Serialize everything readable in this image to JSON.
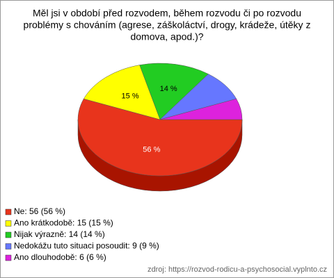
{
  "chart_data": {
    "type": "pie",
    "title": [
      "Měl jsi v období před rozvodem, během rozvodu či po rozvodu",
      "problémy s chováním (agrese, záškoláctví, drogy, krádeže, útěky z",
      "domova, apod.)?"
    ],
    "categories": [
      "Ne",
      "Ano krátkodobě",
      "Nijak výrazně",
      "Nedokážu tuto situaci posoudit",
      "Ano dlouhodobě"
    ],
    "values": [
      56,
      15,
      14,
      9,
      6
    ],
    "value_labels": [
      "56 %",
      "15 %",
      "14 %",
      null,
      null
    ],
    "legend_labels": [
      "Ne: 56 (56 %)",
      "Ano krátkodobě: 15 (15 %)",
      "Nijak výrazně: 14 (14 %)",
      "Nedokážu tuto situaci posoudit: 9 (9 %)",
      "Ano dlouhodobě: 6 (6 %)"
    ],
    "colors": [
      "#e8341c",
      "#ffff00",
      "#22cc22",
      "#6677ff",
      "#dd22dd"
    ],
    "side_colors": [
      "#a81400",
      "#b0b000",
      "#118811",
      "#3344bb",
      "#991199"
    ],
    "source": "zdroj: https://rozvod-rodicu-a-psychosocial.vyplnto.cz"
  }
}
